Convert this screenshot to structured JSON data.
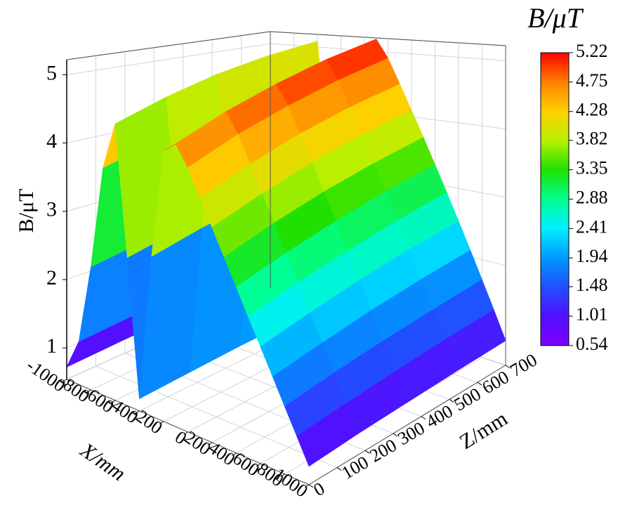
{
  "chart_data": {
    "type": "surface3d",
    "xlabel": "X/mm",
    "zlabel": "Z/mm",
    "ylabel": "B/μT",
    "colorbar_title": "B/μT",
    "x": [
      -1000,
      -900,
      -800,
      -700,
      -600,
      -500,
      -400,
      -300,
      -200,
      -100,
      0,
      100,
      200,
      300,
      400,
      500,
      600,
      700,
      800,
      900,
      1000
    ],
    "z": [
      0,
      175,
      350,
      525,
      700
    ],
    "values": [
      [
        0.72,
        1.17,
        2.34,
        3.87,
        4.59,
        2.7,
        0.72,
        2.88,
        4.5,
        4.68,
        4.41,
        4.05,
        3.69,
        3.33,
        2.97,
        2.61,
        2.25,
        1.89,
        1.53,
        1.17,
        0.81
      ],
      [
        0.75,
        1.22,
        2.44,
        4.04,
        4.79,
        2.82,
        0.75,
        3.01,
        4.7,
        4.89,
        4.61,
        4.23,
        3.85,
        3.48,
        3.1,
        2.73,
        2.35,
        1.97,
        1.6,
        1.22,
        0.85
      ],
      [
        0.78,
        1.26,
        2.52,
        4.17,
        4.95,
        2.91,
        0.78,
        3.1,
        4.85,
        5.04,
        4.75,
        4.37,
        3.98,
        3.59,
        3.2,
        2.81,
        2.43,
        2.04,
        1.65,
        1.26,
        0.87
      ],
      [
        0.79,
        1.29,
        2.57,
        4.26,
        5.05,
        2.97,
        0.79,
        3.17,
        4.95,
        5.15,
        4.85,
        4.46,
        4.06,
        3.66,
        3.27,
        2.87,
        2.48,
        2.08,
        1.68,
        1.29,
        0.89
      ],
      [
        0.8,
        1.3,
        2.6,
        4.3,
        5.1,
        3.0,
        0.8,
        3.2,
        5.0,
        5.2,
        4.9,
        4.5,
        4.1,
        3.7,
        3.3,
        2.9,
        2.5,
        2.1,
        1.7,
        1.3,
        0.9
      ]
    ],
    "xlim": [
      -1000,
      1000
    ],
    "zlim": [
      0,
      700
    ],
    "ylim": [
      0.54,
      5.22
    ],
    "xticks": [
      -1000,
      -800,
      -600,
      -400,
      -200,
      0,
      200,
      400,
      600,
      800,
      1000
    ],
    "zticks": [
      0,
      100,
      200,
      300,
      400,
      500,
      600,
      700
    ],
    "yticks": [
      1,
      2,
      3,
      4,
      5
    ],
    "colorbar_ticks": [
      0.54,
      1.01,
      1.48,
      1.94,
      2.41,
      2.88,
      3.35,
      3.82,
      4.28,
      4.75,
      5.22
    ],
    "colormap": [
      "#8000ff",
      "#5010ff",
      "#2050ff",
      "#0098ff",
      "#00eeff",
      "#00ff90",
      "#20e000",
      "#b8f000",
      "#ffd000",
      "#ff8000",
      "#ff0000"
    ],
    "grid": true
  }
}
